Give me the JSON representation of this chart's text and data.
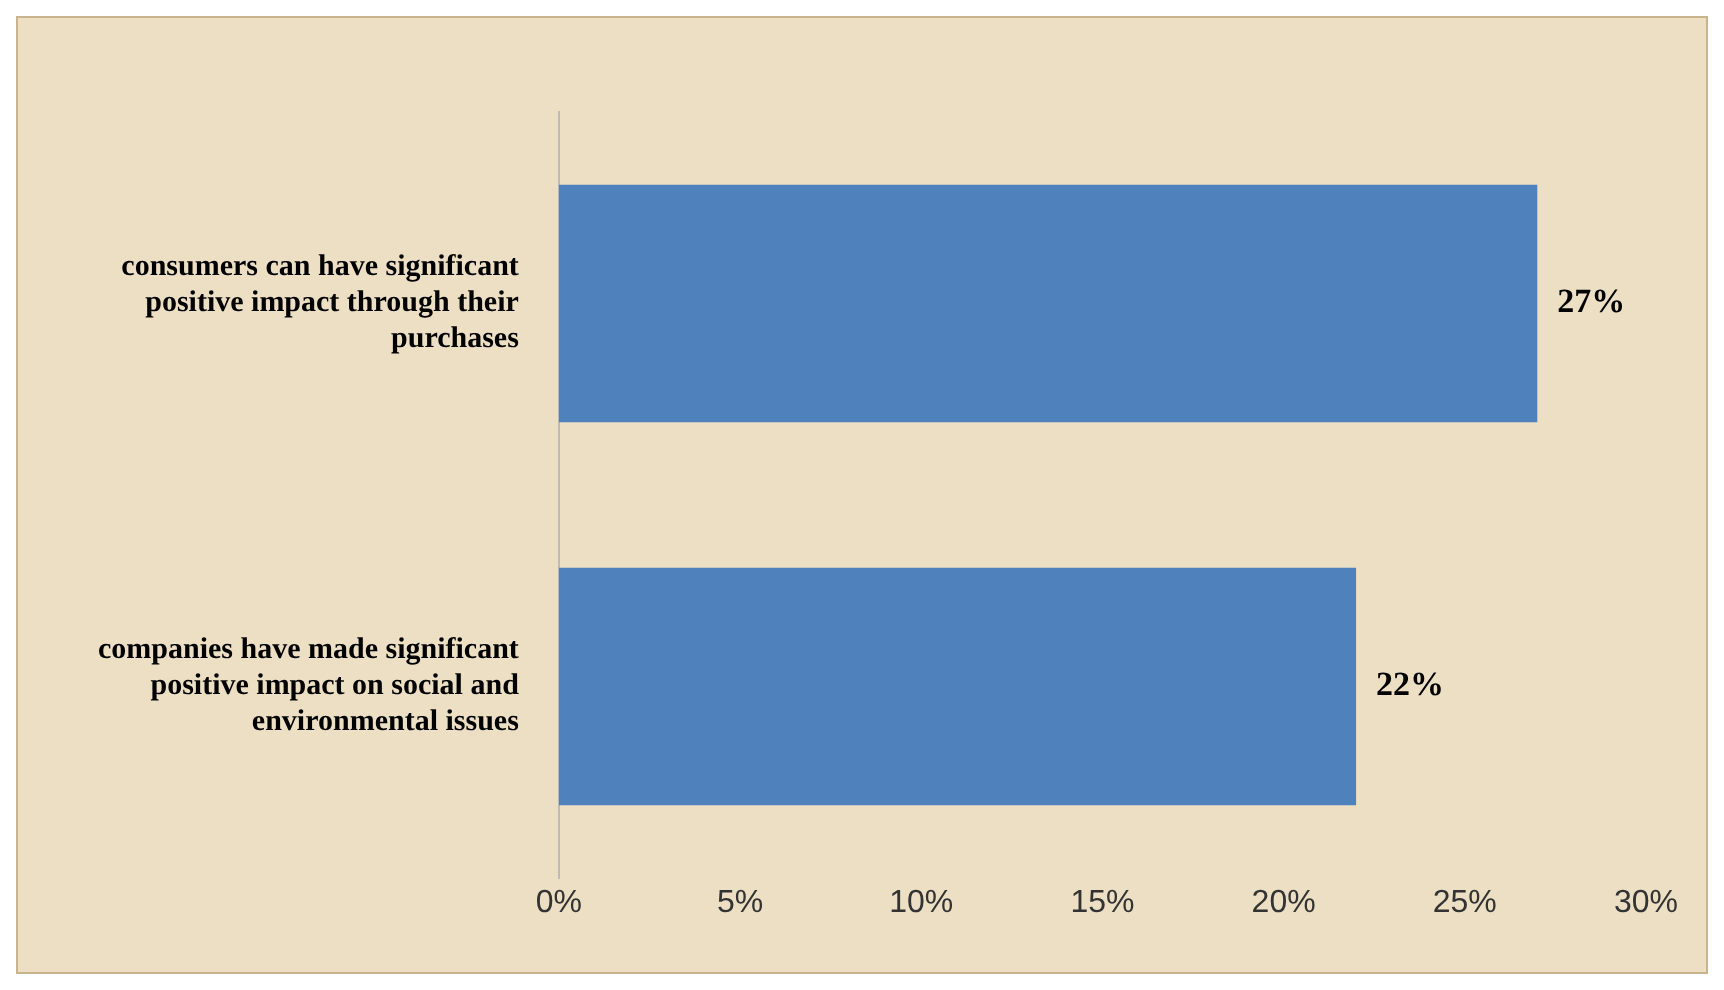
{
  "chart_data": {
    "type": "bar",
    "orientation": "horizontal",
    "categories": [
      "consumers can have significant positive impact through their purchases",
      "companies have made significant positive impact on social and environmental issues"
    ],
    "values": [
      27,
      22
    ],
    "color": "#4f81bd",
    "value_labels": [
      "27%",
      "22%"
    ],
    "xlim": [
      0,
      30
    ],
    "xticks": [
      {
        "value": 0,
        "label": "0%"
      },
      {
        "value": 5,
        "label": "5%"
      },
      {
        "value": 10,
        "label": "10%"
      },
      {
        "value": 15,
        "label": "15%"
      },
      {
        "value": 20,
        "label": "20%"
      },
      {
        "value": 25,
        "label": "25%"
      },
      {
        "value": 30,
        "label": "30%"
      }
    ],
    "grid": false,
    "legend": false
  }
}
